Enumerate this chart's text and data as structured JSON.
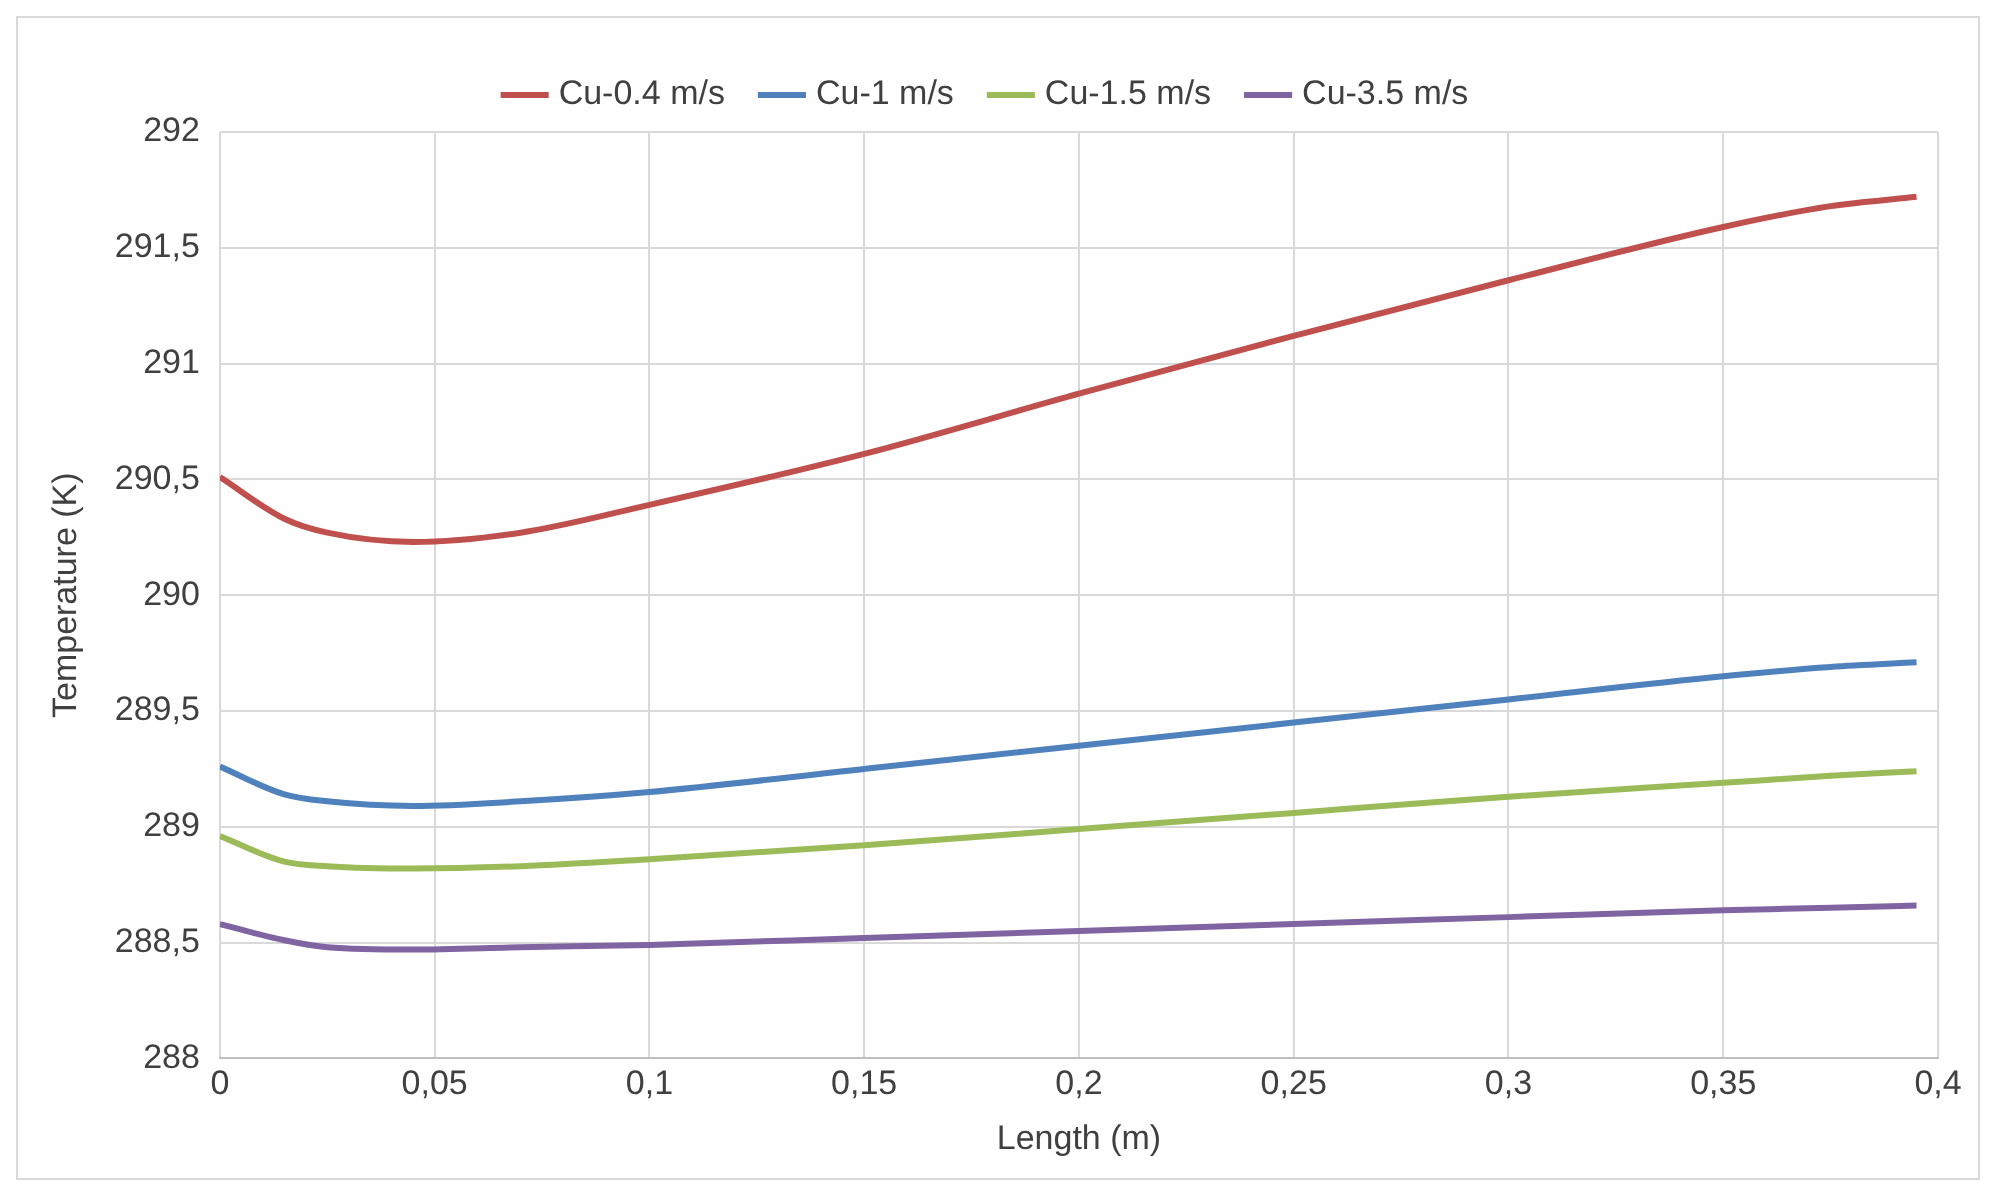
{
  "chart_data": {
    "type": "line",
    "xlabel": "Length (m)",
    "ylabel": "Temperature (K)",
    "x": [
      0,
      0.015,
      0.025,
      0.045,
      0.07,
      0.1,
      0.15,
      0.2,
      0.25,
      0.3,
      0.35,
      0.375,
      0.395
    ],
    "series": [
      {
        "name": "Cu-0.4 m/s",
        "color": "#c0504d",
        "values": [
          290.51,
          290.33,
          290.27,
          290.23,
          290.27,
          290.39,
          290.61,
          290.87,
          291.12,
          291.36,
          291.59,
          291.68,
          291.72
        ]
      },
      {
        "name": "Cu-1 m/s",
        "color": "#4f81bd",
        "values": [
          289.26,
          289.14,
          289.11,
          289.09,
          289.11,
          289.15,
          289.25,
          289.35,
          289.45,
          289.55,
          289.65,
          289.69,
          289.71
        ]
      },
      {
        "name": "Cu-1.5 m/s",
        "color": "#9bbb59",
        "values": [
          288.96,
          288.85,
          288.83,
          288.82,
          288.83,
          288.86,
          288.92,
          288.99,
          289.06,
          289.13,
          289.19,
          289.22,
          289.24
        ]
      },
      {
        "name": "Cu-3.5 m/s",
        "color": "#8064a2",
        "values": [
          288.58,
          288.51,
          288.48,
          288.47,
          288.48,
          288.49,
          288.52,
          288.55,
          288.58,
          288.61,
          288.64,
          288.65,
          288.66
        ]
      }
    ],
    "xlim": [
      0,
      0.4
    ],
    "xticks": [
      0,
      {
        "value": 0.05,
        "label": "0,05"
      },
      {
        "value": 0.1,
        "label": "0,1"
      },
      {
        "value": 0.15,
        "label": "0,15"
      },
      {
        "value": 0.2,
        "label": "0,2"
      },
      {
        "value": 0.25,
        "label": "0,25"
      },
      {
        "value": 0.3,
        "label": "0,3"
      },
      {
        "value": 0.35,
        "label": "0,35"
      },
      {
        "value": 0.4,
        "label": "0,4"
      }
    ],
    "ylim": [
      288,
      292
    ],
    "yticks": [
      288,
      {
        "value": 288.5,
        "label": "288,5"
      },
      289,
      {
        "value": 289.5,
        "label": "289,5"
      },
      290,
      {
        "value": 290.5,
        "label": "290,5"
      },
      291,
      {
        "value": 291.5,
        "label": "291,5"
      },
      292
    ],
    "grid": true,
    "legend": "top",
    "marker": "none",
    "line_style": "solid"
  }
}
